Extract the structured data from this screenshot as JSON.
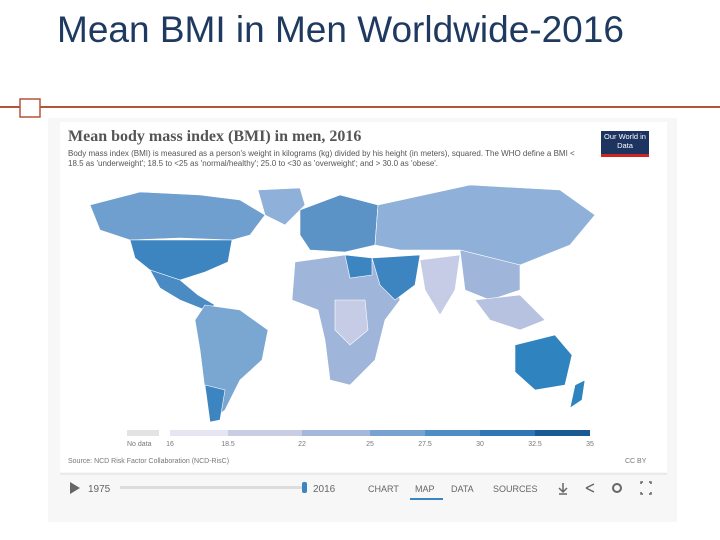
{
  "slide": {
    "title": "Mean BMI in Men Worldwide-2016"
  },
  "embed": {
    "title": "Mean body mass index (BMI) in men, 2016",
    "subtitle": "Body mass index (BMI) is measured as a person's weight in kilograms (kg) divided by his height (in meters), squared. The WHO define a BMI < 18.5 as 'underweight'; 18.5 to <25 as 'normal/healthy'; 25.0 to <30 as 'overweight'; and > 30.0 as 'obese'.",
    "logo": "Our World in Data",
    "legend": {
      "no_data": "No data",
      "ticks": [
        "16",
        "18.5",
        "22",
        "25",
        "27.5",
        "30",
        "32.5",
        "35"
      ]
    },
    "source": "Source: NCD Risk Factor Collaboration (NCD-RisC)",
    "license": "CC BY",
    "timeline": {
      "start": "1975",
      "end": "2016"
    },
    "tabs": [
      "CHART",
      "MAP",
      "DATA",
      "SOURCES"
    ]
  }
}
